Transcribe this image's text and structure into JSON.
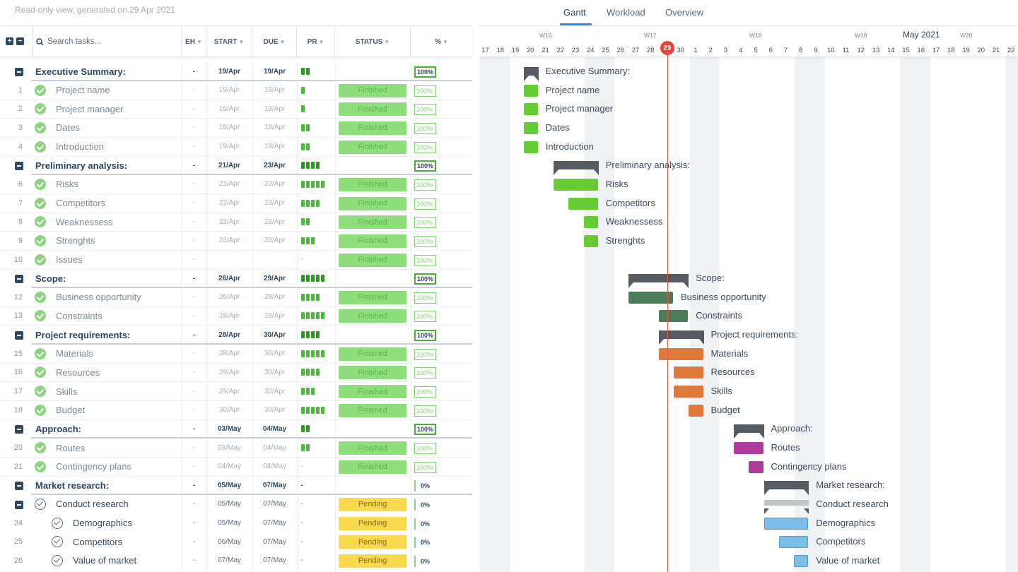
{
  "header": {
    "subtitle": "Read-only view, generated on 29 Apr 2021",
    "tabs": [
      "Gantt",
      "Workload",
      "Overview"
    ],
    "active_tab": "Gantt"
  },
  "table": {
    "search_placeholder": "Search tasks...",
    "columns": {
      "eh": "EH",
      "start": "START",
      "due": "DUE",
      "pr": "PR",
      "status": "STATUS",
      "pct": "%"
    }
  },
  "timeline": {
    "weeks": [
      "W16",
      "W17",
      "W18",
      "W19",
      "W20"
    ],
    "month": "May 2021",
    "days": [
      "17",
      "18",
      "19",
      "20",
      "21",
      "22",
      "23",
      "24",
      "25",
      "26",
      "27",
      "28",
      "29",
      "30",
      "1",
      "2",
      "3",
      "4",
      "5",
      "6",
      "7",
      "8",
      "9",
      "10",
      "11",
      "12",
      "13",
      "14",
      "15",
      "16",
      "17",
      "18",
      "19",
      "20",
      "21",
      "22"
    ],
    "today": "29"
  },
  "rows": [
    {
      "type": "group",
      "name": "Executive Summary:",
      "eh": "-",
      "start": "19/Apr",
      "due": "19/Apr",
      "pr": 2,
      "status": "",
      "pct": "100%"
    },
    {
      "type": "task",
      "num": "1",
      "name": "Project name",
      "eh": "-",
      "start": "19/Apr",
      "due": "19/Apr",
      "pr": 1,
      "status": "Finished",
      "pct": "100%"
    },
    {
      "type": "task",
      "num": "2",
      "name": "Project manager",
      "eh": "-",
      "start": "19/Apr",
      "due": "19/Apr",
      "pr": 1,
      "status": "Finished",
      "pct": "100%"
    },
    {
      "type": "task",
      "num": "3",
      "name": "Dates",
      "eh": "-",
      "start": "19/Apr",
      "due": "19/Apr",
      "pr": 2,
      "status": "Finished",
      "pct": "100%"
    },
    {
      "type": "task",
      "num": "4",
      "name": "Introduction",
      "eh": "-",
      "start": "19/Apr",
      "due": "19/Apr",
      "pr": 2,
      "status": "Finished",
      "pct": "100%"
    },
    {
      "type": "group",
      "name": "Preliminary analysis:",
      "eh": "-",
      "start": "21/Apr",
      "due": "23/Apr",
      "pr": 4,
      "status": "",
      "pct": "100%"
    },
    {
      "type": "task",
      "num": "6",
      "name": "Risks",
      "eh": "-",
      "start": "21/Apr",
      "due": "23/Apr",
      "pr": 5,
      "status": "Finished",
      "pct": "100%"
    },
    {
      "type": "task",
      "num": "7",
      "name": "Competitors",
      "eh": "-",
      "start": "22/Apr",
      "due": "23/Apr",
      "pr": 4,
      "status": "Finished",
      "pct": "100%"
    },
    {
      "type": "task",
      "num": "8",
      "name": "Weaknessess",
      "eh": "-",
      "start": "23/Apr",
      "due": "23/Apr",
      "pr": 2,
      "status": "Finished",
      "pct": "100%"
    },
    {
      "type": "task",
      "num": "9",
      "name": "Strenghts",
      "eh": "-",
      "start": "23/Apr",
      "due": "23/Apr",
      "pr": 3,
      "status": "Finished",
      "pct": "100%"
    },
    {
      "type": "task",
      "num": "10",
      "name": "Issues",
      "eh": "-",
      "start": "",
      "due": "",
      "pr": 0,
      "pr_text": "-",
      "status": "Finished",
      "pct": "100%"
    },
    {
      "type": "group",
      "name": "Scope:",
      "eh": "-",
      "start": "26/Apr",
      "due": "29/Apr",
      "pr": 5,
      "status": "",
      "pct": "100%"
    },
    {
      "type": "task",
      "num": "12",
      "name": "Business opportunity",
      "eh": "-",
      "start": "26/Apr",
      "due": "28/Apr",
      "pr": 4,
      "status": "Finished",
      "pct": "100%"
    },
    {
      "type": "task",
      "num": "13",
      "name": "Constraints",
      "eh": "-",
      "start": "28/Apr",
      "due": "29/Apr",
      "pr": 5,
      "status": "Finished",
      "pct": "100%"
    },
    {
      "type": "group",
      "name": "Project requirements:",
      "eh": "-",
      "start": "28/Apr",
      "due": "30/Apr",
      "pr": 4,
      "status": "",
      "pct": "100%"
    },
    {
      "type": "task",
      "num": "15",
      "name": "Materials",
      "eh": "-",
      "start": "28/Apr",
      "due": "30/Apr",
      "pr": 5,
      "status": "Finished",
      "pct": "100%"
    },
    {
      "type": "task",
      "num": "16",
      "name": "Resources",
      "eh": "-",
      "start": "29/Apr",
      "due": "30/Apr",
      "pr": 4,
      "status": "Finished",
      "pct": "100%"
    },
    {
      "type": "task",
      "num": "17",
      "name": "Skills",
      "eh": "-",
      "start": "29/Apr",
      "due": "30/Apr",
      "pr": 3,
      "status": "Finished",
      "pct": "100%"
    },
    {
      "type": "task",
      "num": "18",
      "name": "Budget",
      "eh": "-",
      "start": "30/Apr",
      "due": "30/Apr",
      "pr": 5,
      "status": "Finished",
      "pct": "100%"
    },
    {
      "type": "group",
      "name": "Approach:",
      "eh": "-",
      "start": "03/May",
      "due": "04/May",
      "pr": 2,
      "status": "",
      "pct": "100%"
    },
    {
      "type": "task",
      "num": "20",
      "name": "Routes",
      "eh": "-",
      "start": "03/May",
      "due": "04/May",
      "pr": 2,
      "status": "Finished",
      "pct": "100%"
    },
    {
      "type": "task",
      "num": "21",
      "name": "Contingency plans",
      "eh": "-",
      "start": "04/May",
      "due": "04/May",
      "pr": 0,
      "pr_text": "-",
      "status": "Finished",
      "pct": "100%"
    },
    {
      "type": "group",
      "name": "Market research:",
      "eh": "-",
      "start": "05/May",
      "due": "07/May",
      "pr": 0,
      "pr_text": "-",
      "status": "",
      "pct": "0%"
    },
    {
      "type": "pgroup",
      "name": "Conduct research",
      "eh": "-",
      "start": "05/May",
      "due": "07/May",
      "pr": 0,
      "pr_text": "-",
      "status": "Pending",
      "pct": "0%"
    },
    {
      "type": "pend",
      "num": "24",
      "name": "Demographics",
      "eh": "-",
      "start": "05/May",
      "due": "07/May",
      "pr": 0,
      "pr_text": "-",
      "status": "Pending",
      "pct": "0%"
    },
    {
      "type": "pend",
      "num": "25",
      "name": "Competitors",
      "eh": "-",
      "start": "06/May",
      "due": "07/May",
      "pr": 0,
      "pr_text": "-",
      "status": "Pending",
      "pct": "0%"
    },
    {
      "type": "pend",
      "num": "26",
      "name": "Value of market",
      "eh": "-",
      "start": "07/May",
      "due": "07/May",
      "pr": 0,
      "pr_text": "-",
      "status": "Pending",
      "pct": "0%"
    }
  ],
  "colors": {
    "finished": "#66cc33",
    "scope": "#4a7c59",
    "requirements": "#e07a3a",
    "approach": "#b03a9a",
    "research": "#7bbfe6",
    "summary": "#555b61",
    "today": "#e8423b"
  }
}
